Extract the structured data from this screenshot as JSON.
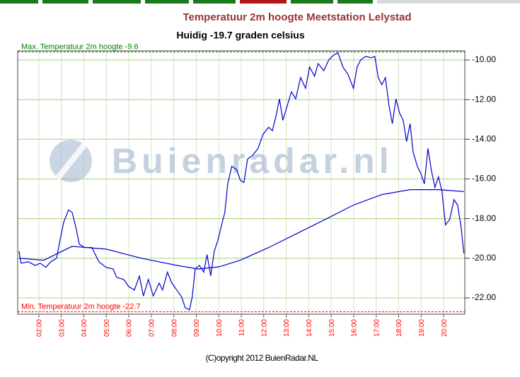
{
  "chart_data": {
    "type": "line",
    "title": "Temperatuur 2m hoogte Meetstation Lelystad",
    "subtitle": "Huidig -19.7 graden celsius",
    "watermark": "Buienradar.nl",
    "copyright": "(C)opyright 2012 BuienRadar.NL",
    "annotations": [
      {
        "text": "Max. Temperatuur 2m hoogte -9.6",
        "value": -9.6,
        "color": "#008000"
      },
      {
        "text": "Min. Temperatuur 2m hoogte -22.7",
        "value": -22.7,
        "color": "#ff0000"
      }
    ],
    "series": [
      {
        "color": "#0000cc",
        "x": [
          1.12,
          1.21,
          1.53,
          1.84,
          2.06,
          2.31,
          2.53,
          2.79,
          2.94,
          3.1,
          3.32,
          3.48,
          3.64,
          3.8,
          4.04,
          4.36,
          4.67,
          4.99,
          5.3,
          5.46,
          5.77,
          6.0,
          6.25,
          6.47,
          6.65,
          6.87,
          7.09,
          7.35,
          7.5,
          7.72,
          7.91,
          8.13,
          8.35,
          8.51,
          8.7,
          8.82,
          8.95,
          9.14,
          9.33,
          9.48,
          9.64,
          9.8,
          9.96,
          10.11,
          10.27,
          10.4,
          10.58,
          10.8,
          10.96,
          11.12,
          11.28,
          11.5,
          11.75,
          11.97,
          12.22,
          12.38,
          12.54,
          12.7,
          12.85,
          13.04,
          13.23,
          13.42,
          13.64,
          13.86,
          14.04,
          14.26,
          14.42,
          14.67,
          14.89,
          15.11,
          15.3,
          15.52,
          15.74,
          15.99,
          16.15,
          16.31,
          16.53,
          16.78,
          16.94,
          17.09,
          17.25,
          17.41,
          17.57,
          17.72,
          17.88,
          18.04,
          18.2,
          18.35,
          18.51,
          18.64,
          18.83,
          18.98,
          19.14,
          19.3,
          19.45,
          19.61,
          19.77,
          19.92,
          20.08,
          20.27,
          20.46,
          20.62,
          20.77,
          20.9
        ],
        "values": [
          -19.64,
          -20.25,
          -20.18,
          -20.36,
          -20.25,
          -20.46,
          -20.18,
          -20.0,
          -19.1,
          -18.2,
          -17.57,
          -17.68,
          -18.4,
          -19.29,
          -19.46,
          -19.46,
          -20.18,
          -20.46,
          -20.54,
          -20.96,
          -21.07,
          -21.43,
          -21.6,
          -20.9,
          -21.9,
          -21.07,
          -21.9,
          -21.25,
          -21.6,
          -20.7,
          -21.25,
          -21.6,
          -21.96,
          -22.5,
          -22.6,
          -21.96,
          -20.54,
          -20.36,
          -20.7,
          -19.82,
          -20.89,
          -19.64,
          -19.1,
          -18.4,
          -17.68,
          -16.25,
          -15.36,
          -15.54,
          -16.07,
          -16.18,
          -15.0,
          -14.82,
          -14.46,
          -13.75,
          -13.39,
          -13.57,
          -12.86,
          -11.96,
          -13.04,
          -12.32,
          -11.61,
          -11.96,
          -10.89,
          -11.43,
          -10.36,
          -10.82,
          -10.18,
          -10.54,
          -10.0,
          -9.75,
          -9.64,
          -10.36,
          -10.71,
          -11.43,
          -10.36,
          -10.0,
          -9.82,
          -9.89,
          -9.82,
          -10.89,
          -11.25,
          -10.89,
          -12.32,
          -13.21,
          -11.96,
          -12.68,
          -13.04,
          -14.11,
          -13.21,
          -14.64,
          -15.36,
          -15.71,
          -16.25,
          -14.46,
          -15.54,
          -16.43,
          -15.89,
          -16.61,
          -18.32,
          -18.04,
          -17.04,
          -17.32,
          -18.39,
          -19.75
        ]
      },
      {
        "color": "#0000cc",
        "x": [
          1.12,
          2.22,
          3.48,
          5.0,
          6.56,
          8.13,
          9.08,
          10.02,
          10.96,
          12.22,
          13.48,
          14.74,
          15.99,
          17.25,
          18.51,
          19.77,
          20.9
        ],
        "values": [
          -20.0,
          -20.1,
          -19.4,
          -19.54,
          -20.0,
          -20.36,
          -20.54,
          -20.43,
          -20.1,
          -19.46,
          -18.75,
          -18.04,
          -17.32,
          -16.79,
          -16.54,
          -16.54,
          -16.64
        ]
      }
    ],
    "xlim": [
      1.06,
      20.94
    ],
    "ylim": [
      -22.82,
      -9.54
    ],
    "xticks": [
      {
        "value": 2,
        "label": "02:00"
      },
      {
        "value": 3,
        "label": "03:00"
      },
      {
        "value": 4,
        "label": "04:00"
      },
      {
        "value": 5,
        "label": "05:00"
      },
      {
        "value": 6,
        "label": "06:00"
      },
      {
        "value": 7,
        "label": "07:00"
      },
      {
        "value": 8,
        "label": "08:00"
      },
      {
        "value": 9,
        "label": "09:00"
      },
      {
        "value": 10,
        "label": "10:00"
      },
      {
        "value": 11,
        "label": "11:00"
      },
      {
        "value": 12,
        "label": "12:00"
      },
      {
        "value": 13,
        "label": "13:00"
      },
      {
        "value": 14,
        "label": "14:00"
      },
      {
        "value": 15,
        "label": "15:00"
      },
      {
        "value": 16,
        "label": "16:00"
      },
      {
        "value": 17,
        "label": "17:00"
      },
      {
        "value": 18,
        "label": "18:00"
      },
      {
        "value": 19,
        "label": "19:00"
      },
      {
        "value": 20,
        "label": "20:00"
      }
    ],
    "yticks": [
      {
        "value": -10,
        "label": "-10.00"
      },
      {
        "value": -12,
        "label": "-12.00"
      },
      {
        "value": -14,
        "label": "-14.00"
      },
      {
        "value": -16,
        "label": "-16.00"
      },
      {
        "value": -18,
        "label": "-18.00"
      },
      {
        "value": -20,
        "label": "-20.00"
      },
      {
        "value": -22,
        "label": "-22.00"
      }
    ],
    "grid": true
  }
}
